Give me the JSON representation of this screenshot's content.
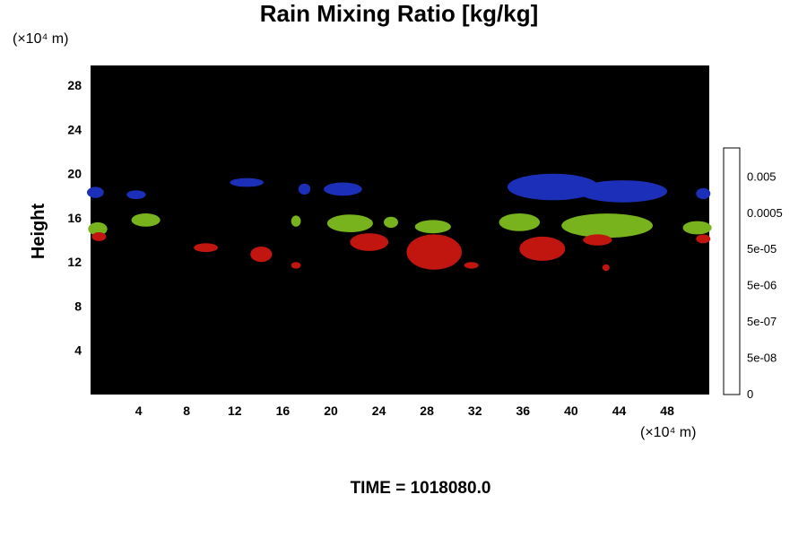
{
  "chart_data": {
    "type": "heatmap",
    "title": "Rain Mixing Ratio [kg/kg]",
    "xlabel": "",
    "ylabel": "Height",
    "x_unit": "(×10⁴ m)",
    "y_unit": "(×10⁴ m)",
    "xlim": [
      0,
      51.5
    ],
    "ylim": [
      0,
      29.8
    ],
    "x_ticks": [
      4,
      8,
      12,
      16,
      20,
      24,
      28,
      32,
      36,
      40,
      44,
      48
    ],
    "y_ticks": [
      4,
      8,
      12,
      16,
      20,
      24,
      28
    ],
    "colorbar": {
      "labels": [
        "0",
        "5e-08",
        "5e-07",
        "5e-06",
        "5e-05",
        "0.0005",
        "0.005"
      ],
      "n_levels": 17,
      "low_color": "#000000",
      "high_color": "#f4f4f4"
    },
    "background": "#000000",
    "time_label": "TIME = 1018080.0",
    "regions": [
      {
        "layer": "blue",
        "color": "#1c2fb8",
        "cx": 0.4,
        "cy": 18.3,
        "rx": 0.7,
        "ry": 0.5
      },
      {
        "layer": "blue",
        "color": "#1c2fb8",
        "cx": 3.8,
        "cy": 18.1,
        "rx": 0.8,
        "ry": 0.4
      },
      {
        "layer": "blue",
        "color": "#1c2fb8",
        "cx": 13.0,
        "cy": 19.2,
        "rx": 1.4,
        "ry": 0.4
      },
      {
        "layer": "blue",
        "color": "#1c2fb8",
        "cx": 17.8,
        "cy": 18.6,
        "rx": 0.5,
        "ry": 0.5
      },
      {
        "layer": "blue",
        "color": "#1c2fb8",
        "cx": 21.0,
        "cy": 18.6,
        "rx": 1.6,
        "ry": 0.6
      },
      {
        "layer": "blue",
        "color": "#1c2fb8",
        "cx": 38.5,
        "cy": 18.8,
        "rx": 3.8,
        "ry": 1.2
      },
      {
        "layer": "blue",
        "color": "#1c2fb8",
        "cx": 44.3,
        "cy": 18.4,
        "rx": 3.7,
        "ry": 1.0
      },
      {
        "layer": "blue",
        "color": "#1c2fb8",
        "cx": 51.0,
        "cy": 18.2,
        "rx": 0.6,
        "ry": 0.5
      },
      {
        "layer": "green",
        "color": "#78b21c",
        "cx": 0.6,
        "cy": 15.0,
        "rx": 0.8,
        "ry": 0.6
      },
      {
        "layer": "green",
        "color": "#78b21c",
        "cx": 4.6,
        "cy": 15.8,
        "rx": 1.2,
        "ry": 0.6
      },
      {
        "layer": "green",
        "color": "#78b21c",
        "cx": 17.1,
        "cy": 15.7,
        "rx": 0.4,
        "ry": 0.5
      },
      {
        "layer": "green",
        "color": "#78b21c",
        "cx": 21.6,
        "cy": 15.5,
        "rx": 1.9,
        "ry": 0.8
      },
      {
        "layer": "green",
        "color": "#78b21c",
        "cx": 25.0,
        "cy": 15.6,
        "rx": 0.6,
        "ry": 0.5
      },
      {
        "layer": "green",
        "color": "#78b21c",
        "cx": 28.5,
        "cy": 15.2,
        "rx": 1.5,
        "ry": 0.6
      },
      {
        "layer": "green",
        "color": "#78b21c",
        "cx": 35.7,
        "cy": 15.6,
        "rx": 1.7,
        "ry": 0.8
      },
      {
        "layer": "green",
        "color": "#78b21c",
        "cx": 43.0,
        "cy": 15.3,
        "rx": 3.8,
        "ry": 1.1
      },
      {
        "layer": "green",
        "color": "#78b21c",
        "cx": 50.5,
        "cy": 15.1,
        "rx": 1.2,
        "ry": 0.6
      },
      {
        "layer": "red",
        "color": "#c1150f",
        "cx": 0.7,
        "cy": 14.3,
        "rx": 0.6,
        "ry": 0.4
      },
      {
        "layer": "red",
        "color": "#c1150f",
        "cx": 9.6,
        "cy": 13.3,
        "rx": 1.0,
        "ry": 0.4
      },
      {
        "layer": "red",
        "color": "#c1150f",
        "cx": 14.2,
        "cy": 12.7,
        "rx": 0.9,
        "ry": 0.7
      },
      {
        "layer": "red",
        "color": "#c1150f",
        "cx": 17.1,
        "cy": 11.7,
        "rx": 0.4,
        "ry": 0.3
      },
      {
        "layer": "red",
        "color": "#c1150f",
        "cx": 23.2,
        "cy": 13.8,
        "rx": 1.6,
        "ry": 0.8
      },
      {
        "layer": "red",
        "color": "#c1150f",
        "cx": 28.6,
        "cy": 12.9,
        "rx": 2.3,
        "ry": 1.6
      },
      {
        "layer": "red",
        "color": "#c1150f",
        "cx": 31.7,
        "cy": 11.7,
        "rx": 0.6,
        "ry": 0.3
      },
      {
        "layer": "red",
        "color": "#c1150f",
        "cx": 37.6,
        "cy": 13.2,
        "rx": 1.9,
        "ry": 1.1
      },
      {
        "layer": "red",
        "color": "#c1150f",
        "cx": 42.2,
        "cy": 14.0,
        "rx": 1.2,
        "ry": 0.5
      },
      {
        "layer": "red",
        "color": "#c1150f",
        "cx": 42.9,
        "cy": 11.5,
        "rx": 0.3,
        "ry": 0.3
      },
      {
        "layer": "red",
        "color": "#c1150f",
        "cx": 51.0,
        "cy": 14.1,
        "rx": 0.6,
        "ry": 0.4
      }
    ]
  }
}
